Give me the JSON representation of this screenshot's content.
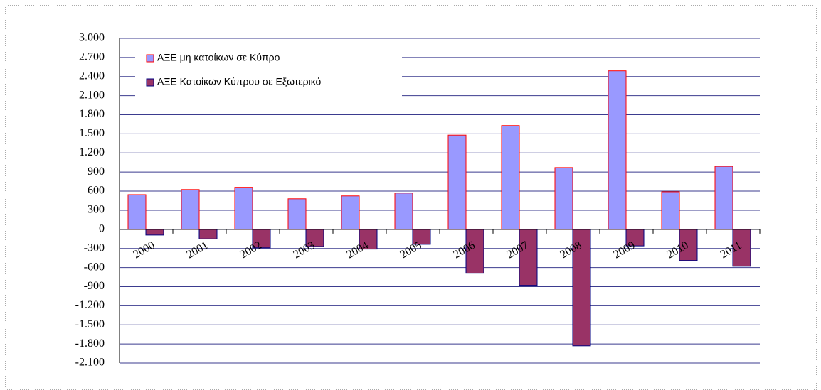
{
  "chart_data": {
    "type": "bar",
    "categories": [
      "2000",
      "2001",
      "2002",
      "2003",
      "2004",
      "2005",
      "2006",
      "2007",
      "2008",
      "2009",
      "2010",
      "2011"
    ],
    "series": [
      {
        "name": "ΑΞΕ μη κατοίκων σε Κύπρο",
        "color": "#9999ff",
        "edge": "#ff0000",
        "values": [
          545,
          625,
          660,
          480,
          525,
          570,
          1480,
          1630,
          970,
          2490,
          590,
          990
        ]
      },
      {
        "name": "ΑΞΕ Κατοίκων Κύπρου σε Εξωτερικό",
        "color": "#993366",
        "edge": "#000080",
        "values": [
          -90,
          -150,
          -290,
          -270,
          -310,
          -235,
          -690,
          -880,
          -1830,
          -260,
          -490,
          -580
        ]
      }
    ],
    "ylim": [
      -2100,
      3000
    ],
    "yticks": [
      {
        "value": -2100,
        "label": "-2.100"
      },
      {
        "value": -1800,
        "label": "-1.800"
      },
      {
        "value": -1500,
        "label": "-1.500"
      },
      {
        "value": -1200,
        "label": "-1.200"
      },
      -900,
      -600,
      -300,
      0,
      300,
      600,
      900,
      {
        "value": 1200,
        "label": "1.200"
      },
      {
        "value": 1500,
        "label": "1.500"
      },
      {
        "value": 1800,
        "label": "1.800"
      },
      {
        "value": 2100,
        "label": "2.100"
      },
      {
        "value": 2400,
        "label": "2.400"
      },
      {
        "value": 2700,
        "label": "2.700"
      },
      {
        "value": 3000,
        "label": "3.000"
      }
    ],
    "grid": true,
    "legend": "upper left"
  }
}
